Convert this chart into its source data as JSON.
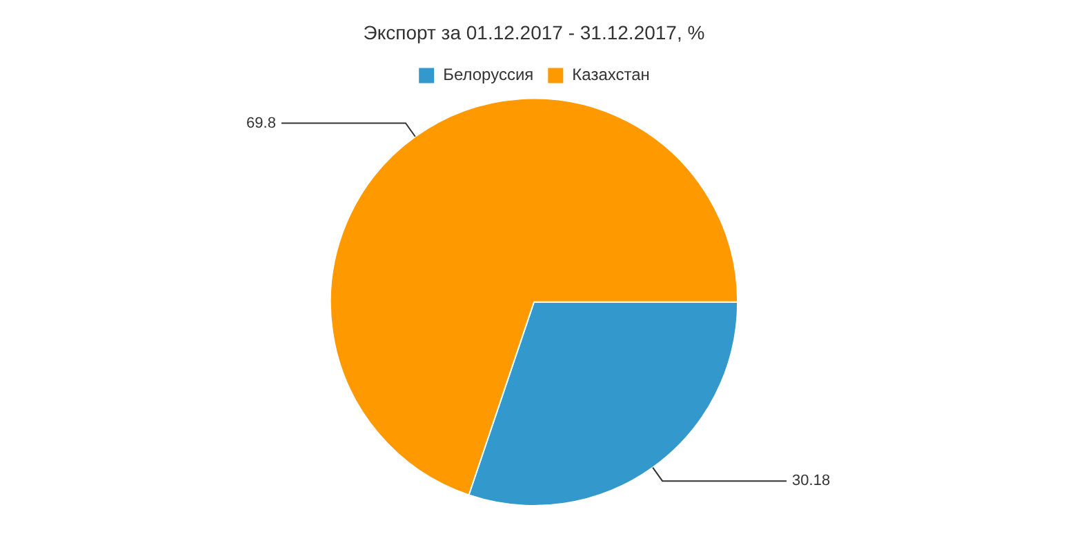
{
  "chart_data": {
    "type": "pie",
    "title": "Экспорт за 01.12.2017 - 31.12.2017, %",
    "categories": [
      "Белоруссия",
      "Казахстан"
    ],
    "values": [
      30.18,
      69.8
    ],
    "colors": [
      "#3399cc",
      "#ff9900"
    ],
    "legend": "top",
    "data_labels": true
  }
}
